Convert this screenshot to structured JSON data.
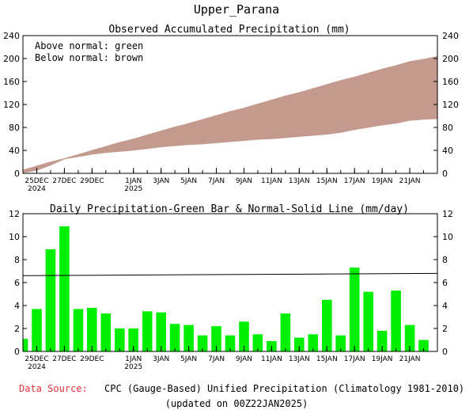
{
  "page": {
    "title": "Upper_Parana",
    "source_label": "Data Source:",
    "source_text": "CPC (Gauge-Based) Unified Precipitation (Climatology 1981-2010)",
    "updated": "(updated on 00Z22JAN2025)"
  },
  "colors": {
    "above_normal": "#00dd00",
    "below_normal": "#c49a8e",
    "bar": "#00ee00",
    "normal_line": "#000000",
    "source_label": "#e8323c"
  },
  "chart_data": [
    {
      "type": "area",
      "title": "Observed Accumulated Precipitation (mm)",
      "legend": [
        "Above normal: green",
        "Below normal: brown"
      ],
      "legend_position": "top-left",
      "x_tick_labels": [
        {
          "day": 1,
          "label": "25DEC",
          "label2": "2024"
        },
        {
          "day": 3,
          "label": "27DEC"
        },
        {
          "day": 5,
          "label": "29DEC"
        },
        {
          "day": 8,
          "label": "1JAN",
          "label2": "2025"
        },
        {
          "day": 10,
          "label": "3JAN"
        },
        {
          "day": 12,
          "label": "5JAN"
        },
        {
          "day": 14,
          "label": "7JAN"
        },
        {
          "day": 16,
          "label": "9JAN"
        },
        {
          "day": 18,
          "label": "11JAN"
        },
        {
          "day": 20,
          "label": "13JAN"
        },
        {
          "day": 22,
          "label": "15JAN"
        },
        {
          "day": 24,
          "label": "17JAN"
        },
        {
          "day": 26,
          "label": "19JAN"
        },
        {
          "day": 28,
          "label": "21JAN"
        }
      ],
      "ylim": [
        0,
        240
      ],
      "yticks": [
        0,
        40,
        80,
        120,
        160,
        200,
        240
      ],
      "xlim": [
        0,
        30
      ],
      "series": [
        {
          "name": "Observed",
          "x": [
            0,
            1,
            2,
            3,
            4,
            5,
            6,
            7,
            8,
            9,
            10,
            11,
            12,
            13,
            14,
            15,
            16,
            17,
            18,
            19,
            20,
            21,
            22,
            23,
            24,
            25,
            26,
            27,
            28,
            29,
            30
          ],
          "values": [
            1,
            5,
            14,
            25,
            29,
            33,
            36,
            38,
            40,
            43,
            46,
            48,
            50,
            51,
            53,
            55,
            57,
            59,
            60,
            62,
            64,
            66,
            68,
            71,
            76,
            80,
            84,
            87,
            92,
            94,
            95
          ]
        },
        {
          "name": "Normal",
          "x": [
            0,
            1,
            2,
            3,
            4,
            5,
            6,
            7,
            8,
            9,
            10,
            11,
            12,
            13,
            14,
            15,
            16,
            17,
            18,
            19,
            20,
            21,
            22,
            23,
            24,
            25,
            26,
            27,
            28,
            29,
            30
          ],
          "values": [
            6,
            13,
            20,
            26,
            33,
            40,
            47,
            54,
            60,
            67,
            74,
            81,
            87,
            94,
            101,
            108,
            114,
            121,
            128,
            135,
            141,
            148,
            155,
            162,
            168,
            175,
            182,
            188,
            195,
            199,
            204
          ]
        }
      ]
    },
    {
      "type": "bar",
      "title": "Daily Precipitation-Green Bar & Normal-Solid Line (mm/day)",
      "x_tick_labels": [
        {
          "day": 1,
          "label": "25DEC",
          "label2": "2024"
        },
        {
          "day": 3,
          "label": "27DEC"
        },
        {
          "day": 5,
          "label": "29DEC"
        },
        {
          "day": 8,
          "label": "1JAN",
          "label2": "2025"
        },
        {
          "day": 10,
          "label": "3JAN"
        },
        {
          "day": 12,
          "label": "5JAN"
        },
        {
          "day": 14,
          "label": "7JAN"
        },
        {
          "day": 16,
          "label": "9JAN"
        },
        {
          "day": 18,
          "label": "11JAN"
        },
        {
          "day": 20,
          "label": "13JAN"
        },
        {
          "day": 22,
          "label": "15JAN"
        },
        {
          "day": 24,
          "label": "17JAN"
        },
        {
          "day": 26,
          "label": "19JAN"
        },
        {
          "day": 28,
          "label": "21JAN"
        }
      ],
      "ylim": [
        0,
        12
      ],
      "yticks": [
        0,
        2,
        4,
        6,
        8,
        10,
        12
      ],
      "xlim": [
        0,
        30
      ],
      "series": [
        {
          "name": "Daily Precipitation",
          "x": [
            0,
            1,
            2,
            3,
            4,
            5,
            6,
            7,
            8,
            9,
            10,
            11,
            12,
            13,
            14,
            15,
            16,
            17,
            18,
            19,
            20,
            21,
            22,
            23,
            24,
            25,
            26,
            27,
            28,
            29
          ],
          "values": [
            1.1,
            3.7,
            8.9,
            10.9,
            3.7,
            3.8,
            3.3,
            2.0,
            2.0,
            3.5,
            3.4,
            2.4,
            2.3,
            1.4,
            2.2,
            1.4,
            2.6,
            1.5,
            0.9,
            3.3,
            1.2,
            1.5,
            4.5,
            1.4,
            7.3,
            5.2,
            1.8,
            5.3,
            2.3,
            1.0
          ]
        },
        {
          "name": "Normal",
          "x": [
            0,
            30
          ],
          "values": [
            6.6,
            6.8
          ]
        }
      ]
    }
  ]
}
